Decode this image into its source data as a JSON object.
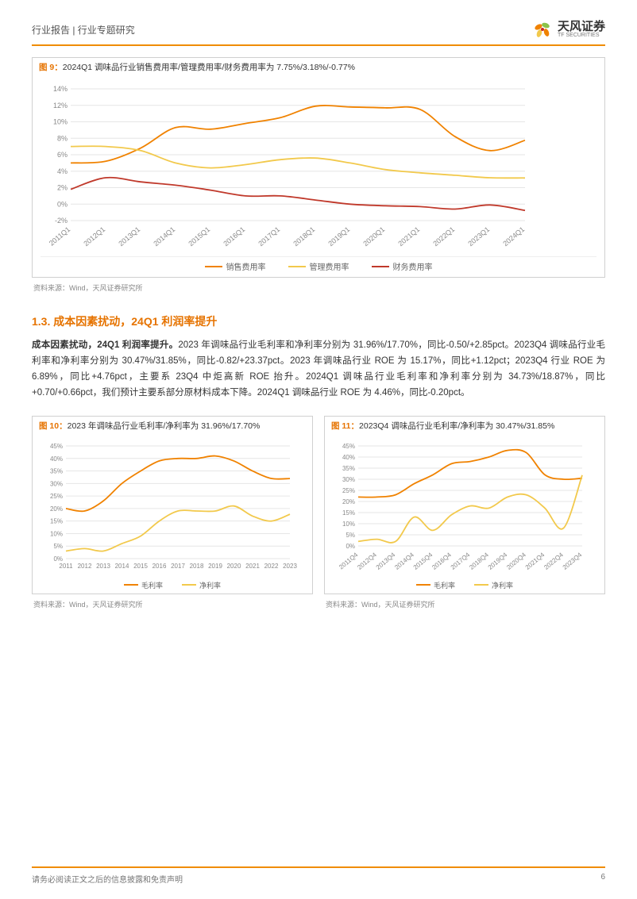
{
  "header": {
    "breadcrumb": "行业报告 | 行业专题研究",
    "brand": "天风证券",
    "brand_sub": "TF SECURITIES",
    "accent": "#f08c00"
  },
  "fig9": {
    "prefix": "图 9：",
    "title": "2024Q1 调味品行业销售费用率/管理费用率/财务费用率为 7.75%/3.18%/-0.77%",
    "type": "line",
    "x": [
      "2011Q1",
      "2012Q1",
      "2013Q1",
      "2014Q1",
      "2015Q1",
      "2016Q1",
      "2017Q1",
      "2018Q1",
      "2019Q1",
      "2020Q1",
      "2021Q1",
      "2022Q1",
      "2023Q1",
      "2024Q1"
    ],
    "series": [
      {
        "name": "销售费用率",
        "color": "#f08200",
        "values": [
          5.0,
          5.2,
          6.8,
          9.3,
          9.1,
          9.8,
          10.5,
          11.9,
          11.8,
          11.7,
          11.5,
          8.2,
          6.5,
          7.75
        ]
      },
      {
        "name": "管理费用率",
        "color": "#f2c94c",
        "values": [
          7.0,
          7.0,
          6.5,
          5.0,
          4.4,
          4.8,
          5.4,
          5.6,
          5.0,
          4.2,
          3.8,
          3.5,
          3.2,
          3.18
        ]
      },
      {
        "name": "财务费用率",
        "color": "#c0392b",
        "values": [
          1.8,
          3.2,
          2.7,
          2.3,
          1.7,
          1.0,
          1.0,
          0.5,
          0.0,
          -0.2,
          -0.3,
          -0.6,
          -0.1,
          -0.77
        ]
      }
    ],
    "ylim": [
      -2,
      14
    ],
    "ytick_step": 2,
    "label_fontsize": 9,
    "grid_color": "#e6e6e6",
    "background": "#ffffff",
    "source": "资料来源：Wind，天风证券研究所"
  },
  "section": {
    "heading": "1.3. 成本因素扰动，24Q1 利润率提升",
    "text": "成本因素扰动，24Q1 利润率提升。2023 年调味品行业毛利率和净利率分别为 31.96%/17.70%，同比-0.50/+2.85pct。2023Q4 调味品行业毛利率和净利率分别为 30.47%/31.85%，同比-0.82/+23.37pct。2023 年调味品行业 ROE 为 15.17%，同比+1.12pct；2023Q4 行业 ROE 为 6.89%，同比+4.76pct，主要系 23Q4 中炬高新 ROE 抬升。2024Q1 调味品行业毛利率和净利率分别为 34.73%/18.87%，同比+0.70/+0.66pct，我们预计主要系部分原材料成本下降。2024Q1 调味品行业 ROE 为 4.46%，同比-0.20pct。",
    "bold_lead": "成本因素扰动，24Q1 利润率提升。"
  },
  "fig10": {
    "prefix": "图 10：",
    "title": "2023 年调味品行业毛利率/净利率为 31.96%/17.70%",
    "type": "line",
    "x": [
      "2011",
      "2012",
      "2013",
      "2014",
      "2015",
      "2016",
      "2017",
      "2018",
      "2019",
      "2020",
      "2021",
      "2022",
      "2023"
    ],
    "series": [
      {
        "name": "毛利率",
        "color": "#f08200",
        "values": [
          20,
          19,
          23,
          30,
          35,
          39,
          40,
          40,
          41,
          39,
          35,
          32,
          31.96
        ]
      },
      {
        "name": "净利率",
        "color": "#f2c94c",
        "values": [
          3,
          4,
          3,
          6,
          9,
          15,
          19,
          19,
          19,
          21,
          17,
          15,
          17.7
        ]
      }
    ],
    "ylim": [
      0,
      45
    ],
    "ytick_step": 5,
    "label_fontsize": 8,
    "grid_color": "#e6e6e6",
    "source": "资料来源：Wind，天风证券研究所"
  },
  "fig11": {
    "prefix": "图 11：",
    "title": "2023Q4 调味品行业毛利率/净利率为 30.47%/31.85%",
    "type": "line",
    "x": [
      "2011Q4",
      "2012Q4",
      "2013Q4",
      "2014Q4",
      "2015Q4",
      "2016Q4",
      "2017Q4",
      "2018Q4",
      "2019Q4",
      "2020Q4",
      "2021Q4",
      "2022Q4",
      "2023Q4"
    ],
    "series": [
      {
        "name": "毛利率",
        "color": "#f08200",
        "values": [
          22,
          22,
          23,
          28,
          32,
          37,
          38,
          40,
          43,
          42,
          32,
          30,
          30.47
        ]
      },
      {
        "name": "净利率",
        "color": "#f2c94c",
        "values": [
          2,
          3,
          2,
          13,
          7,
          14,
          18,
          17,
          22,
          23,
          17,
          8,
          31.85
        ]
      }
    ],
    "ylim": [
      0,
      45
    ],
    "ytick_step": 5,
    "label_fontsize": 8,
    "grid_color": "#e6e6e6",
    "source": "资料来源：Wind，天风证券研究所"
  },
  "footer": {
    "text": "请务必阅读正文之后的信息披露和免责声明",
    "page": "6"
  }
}
